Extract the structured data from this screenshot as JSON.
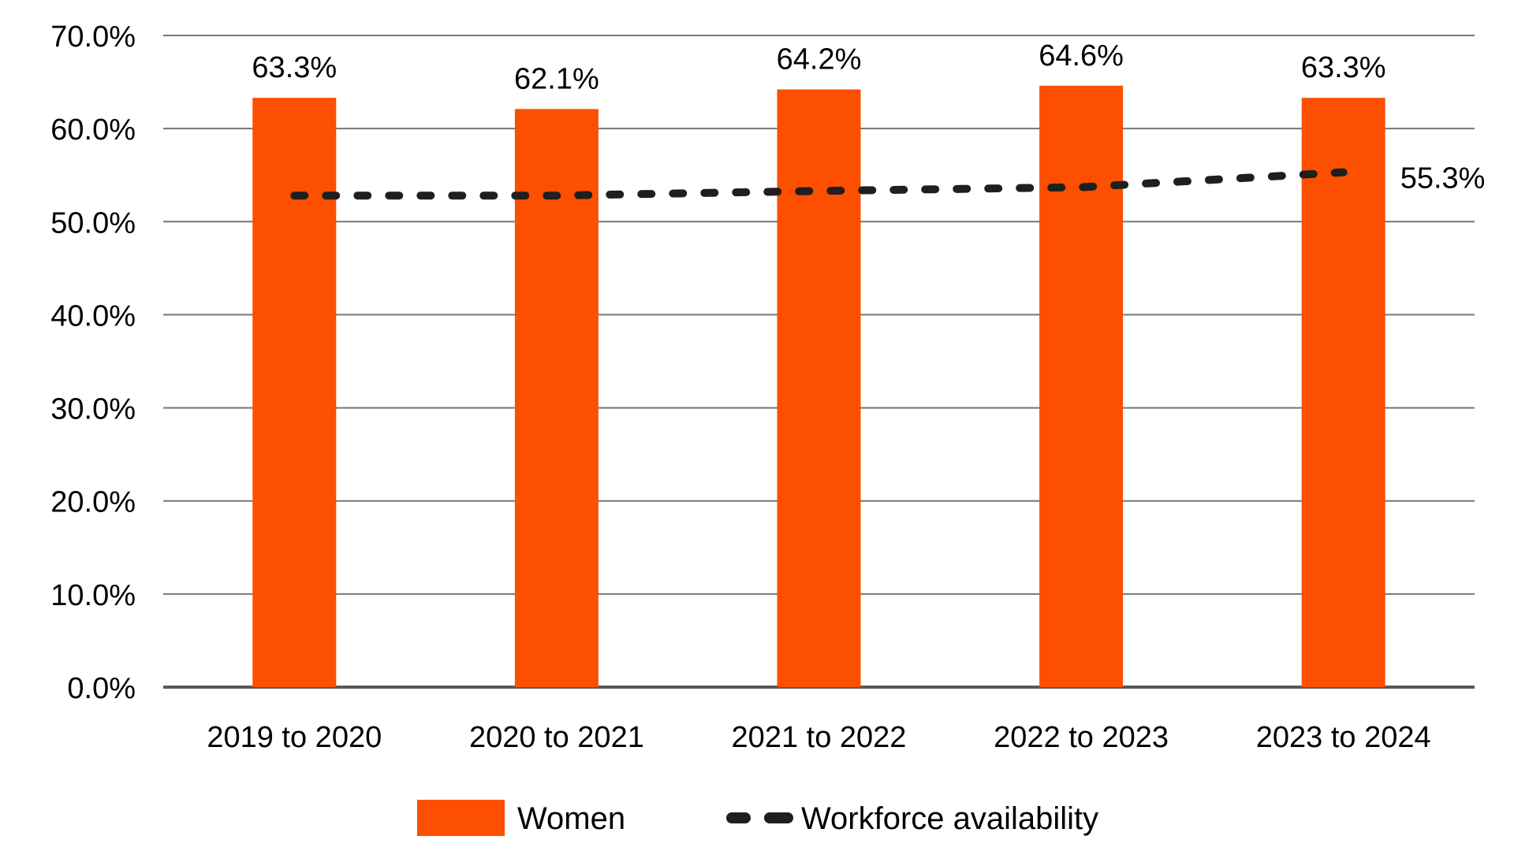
{
  "chart_data": {
    "type": "bar",
    "title": "",
    "categories": [
      "2019 to 2020",
      "2020 to 2021",
      "2021 to 2022",
      "2022 to 2023",
      "2023 to 2024"
    ],
    "series": [
      {
        "name": "Women",
        "type": "bar",
        "color": "#FC4F00",
        "values": [
          63.3,
          62.1,
          64.2,
          64.6,
          63.3
        ],
        "labels": [
          "63.3%",
          "62.1%",
          "64.2%",
          "64.6%",
          "63.3%"
        ]
      },
      {
        "name": "Workforce availability",
        "type": "line",
        "style": "dashed",
        "color": "#1F1F1F",
        "values": [
          52.8,
          52.8,
          53.3,
          53.7,
          55.3
        ],
        "end_label": "55.3%"
      }
    ],
    "xlabel": "",
    "ylabel": "",
    "ylim": [
      0,
      70
    ],
    "yticks": [
      {
        "label": "0.0%",
        "value": 0
      },
      {
        "label": "10.0%",
        "value": 10
      },
      {
        "label": "20.0%",
        "value": 20
      },
      {
        "label": "30.0%",
        "value": 30
      },
      {
        "label": "40.0%",
        "value": 40
      },
      {
        "label": "50.0%",
        "value": 50
      },
      {
        "label": "60.0%",
        "value": 60
      },
      {
        "label": "70.0%",
        "value": 70
      }
    ],
    "grid": true,
    "legend_position": "bottom"
  },
  "legend": {
    "items": [
      {
        "label": "Women",
        "marker": "bar-swatch"
      },
      {
        "label": "Workforce availability",
        "marker": "dashed-line"
      }
    ]
  },
  "colors": {
    "bar": "#FC4F00",
    "line": "#1F1F1F",
    "gridline": "#767676",
    "baseline": "#595959",
    "text": "#000000",
    "background": "#FFFFFF"
  }
}
